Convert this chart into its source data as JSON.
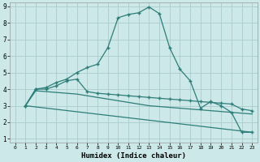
{
  "xlabel": "Humidex (Indice chaleur)",
  "bg_color": "#cce8e8",
  "line_color": "#2d7d78",
  "grid_color": "#aacccc",
  "xlim": [
    -0.5,
    23.5
  ],
  "ylim": [
    0.8,
    9.2
  ],
  "xticks": [
    0,
    1,
    2,
    3,
    4,
    5,
    6,
    7,
    8,
    9,
    10,
    11,
    12,
    13,
    14,
    15,
    16,
    17,
    18,
    19,
    20,
    21,
    22,
    23
  ],
  "yticks": [
    1,
    2,
    3,
    4,
    5,
    6,
    7,
    8,
    9
  ],
  "line1_x": [
    1,
    2,
    3,
    4,
    5,
    6,
    7,
    8,
    9,
    10,
    11,
    12,
    13,
    14,
    15,
    16,
    17,
    18,
    19,
    20,
    21,
    22,
    23
  ],
  "line1_y": [
    3.0,
    4.0,
    4.1,
    4.4,
    4.6,
    5.0,
    5.3,
    5.5,
    6.5,
    8.3,
    8.5,
    8.6,
    8.95,
    8.55,
    6.5,
    5.2,
    4.5,
    2.85,
    3.25,
    3.0,
    2.6,
    1.4,
    1.4
  ],
  "line2_x": [
    1,
    2,
    3,
    4,
    5,
    6,
    7,
    8,
    9,
    10,
    11,
    12,
    13,
    14,
    15,
    16,
    17,
    18,
    19,
    20,
    21,
    22,
    23
  ],
  "line2_y": [
    3.0,
    4.0,
    4.0,
    4.2,
    4.5,
    4.6,
    3.85,
    3.75,
    3.7,
    3.65,
    3.6,
    3.55,
    3.5,
    3.45,
    3.4,
    3.35,
    3.3,
    3.25,
    3.2,
    3.15,
    3.1,
    2.8,
    2.7
  ],
  "line3_x": [
    1,
    2,
    3,
    4,
    5,
    6,
    7,
    8,
    9,
    10,
    11,
    12,
    13,
    14,
    15,
    16,
    17,
    18,
    19,
    20,
    21,
    22,
    23
  ],
  "line3_y": [
    3.0,
    3.9,
    3.85,
    3.8,
    3.75,
    3.7,
    3.6,
    3.5,
    3.4,
    3.3,
    3.2,
    3.1,
    3.0,
    2.95,
    2.9,
    2.85,
    2.8,
    2.75,
    2.7,
    2.65,
    2.6,
    2.55,
    2.5
  ],
  "line4_x": [
    1,
    23
  ],
  "line4_y": [
    3.0,
    1.4
  ],
  "figsize": [
    3.2,
    2.0
  ],
  "dpi": 100
}
